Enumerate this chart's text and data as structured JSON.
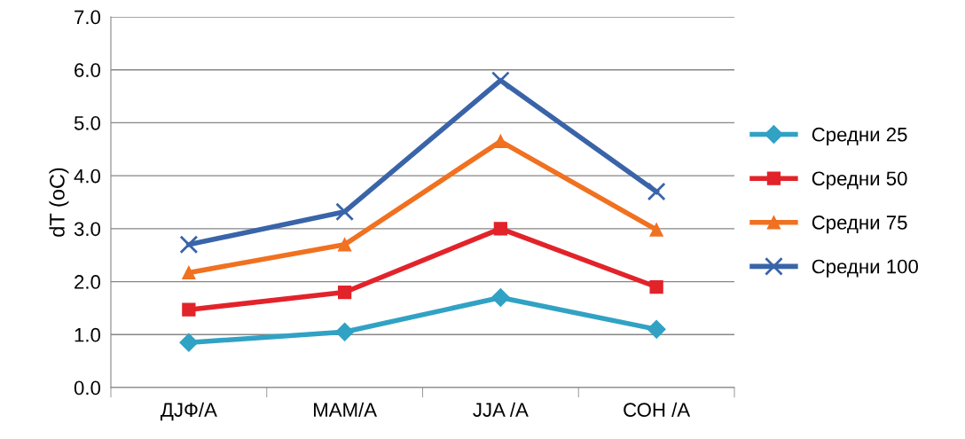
{
  "chart_data": {
    "type": "line",
    "ylabel": "dT (oC)",
    "categories": [
      "ДЈФ/А",
      "МАМ/А",
      "JJA /А",
      "СОН /А"
    ],
    "series": [
      {
        "name": "Средни 25",
        "color": "#31a2c4",
        "marker": "diamond",
        "values": [
          0.85,
          1.05,
          1.7,
          1.1
        ]
      },
      {
        "name": "Средни 50",
        "color": "#e2232a",
        "marker": "square",
        "values": [
          1.47,
          1.8,
          3.0,
          1.9
        ]
      },
      {
        "name": "Средни 75",
        "color": "#f07120",
        "marker": "triangle",
        "values": [
          2.17,
          2.7,
          4.65,
          2.98
        ]
      },
      {
        "name": "Средни 100",
        "color": "#3a64a8",
        "marker": "cross",
        "values": [
          2.7,
          3.32,
          5.8,
          3.7
        ]
      }
    ],
    "ylim": [
      0,
      7
    ],
    "yticks": [
      {
        "value": 0,
        "label": "0.0"
      },
      {
        "value": 1,
        "label": "1.0"
      },
      {
        "value": 2,
        "label": "2.0"
      },
      {
        "value": 3,
        "label": "3.0"
      },
      {
        "value": 4,
        "label": "4.0"
      },
      {
        "value": 5,
        "label": "5.0"
      },
      {
        "value": 6,
        "label": "6.0"
      },
      {
        "value": 7,
        "label": "7.0"
      }
    ],
    "grid": "y",
    "legend": "right",
    "line_style": "solid"
  }
}
